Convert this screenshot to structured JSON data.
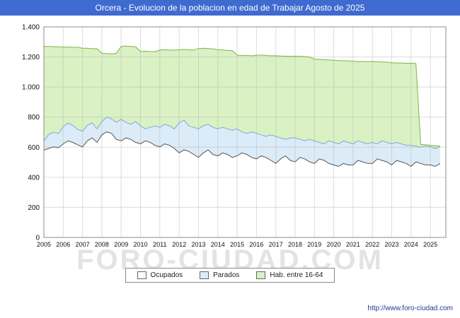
{
  "window": {
    "title": "Orcera - Evolucion de la poblacion en edad de Trabajar Agosto de 2025"
  },
  "watermark": "FORO-CIUDAD.COM",
  "footer": {
    "url": "http://www.foro-ciudad.com"
  },
  "legend": [
    {
      "label": "Ocupados",
      "fill": "#ffffff"
    },
    {
      "label": "Parados",
      "fill": "#dcebf8"
    },
    {
      "label": "Hab. entre 16-64",
      "fill": "#daf1c4"
    }
  ],
  "chart_data": {
    "type": "area",
    "title": "Orcera - Evolucion de la poblacion en edad de Trabajar Agosto de 2025",
    "xlabel": "",
    "ylabel": "",
    "grid": true,
    "legend_position": "bottom",
    "ylim": [
      0,
      1400
    ],
    "yticks": [
      0,
      200,
      400,
      600,
      800,
      1000,
      1200,
      1400
    ],
    "ytick_labels": [
      "0",
      "200",
      "400",
      "600",
      "800",
      "1.000",
      "1.200",
      "1.400"
    ],
    "xticks": [
      2005,
      2006,
      2007,
      2008,
      2009,
      2010,
      2011,
      2012,
      2013,
      2014,
      2015,
      2016,
      2017,
      2018,
      2019,
      2020,
      2021,
      2022,
      2023,
      2024,
      2025
    ],
    "x_start": 2005,
    "x_step": 0.25,
    "x_axis_end": 2025.8,
    "series": [
      {
        "name": "Hab. entre 16-64",
        "fill": "#daf1c4",
        "stroke": "#7fb347",
        "values": [
          1270,
          1270,
          1268,
          1268,
          1266,
          1266,
          1264,
          1264,
          1258,
          1258,
          1255,
          1255,
          1225,
          1222,
          1220,
          1224,
          1270,
          1272,
          1270,
          1268,
          1236,
          1238,
          1236,
          1235,
          1246,
          1248,
          1246,
          1245,
          1248,
          1250,
          1248,
          1246,
          1256,
          1258,
          1256,
          1254,
          1248,
          1246,
          1244,
          1242,
          1212,
          1210,
          1210,
          1208,
          1212,
          1212,
          1210,
          1208,
          1208,
          1206,
          1205,
          1204,
          1205,
          1204,
          1202,
          1200,
          1186,
          1184,
          1182,
          1180,
          1178,
          1176,
          1175,
          1174,
          1172,
          1170,
          1170,
          1168,
          1170,
          1168,
          1166,
          1165,
          1162,
          1160,
          1160,
          1158,
          1158,
          1156,
          618,
          616,
          612,
          610,
          608
        ]
      },
      {
        "name": "Parados",
        "fill": "#dcebf8",
        "stroke": "#7ea9d8",
        "values": [
          640,
          685,
          700,
          690,
          735,
          760,
          745,
          718,
          705,
          745,
          762,
          722,
          770,
          800,
          788,
          765,
          785,
          765,
          752,
          770,
          742,
          722,
          732,
          742,
          732,
          752,
          742,
          722,
          762,
          780,
          742,
          732,
          722,
          742,
          752,
          732,
          722,
          732,
          722,
          712,
          722,
          702,
          692,
          702,
          692,
          682,
          672,
          682,
          672,
          662,
          652,
          662,
          662,
          652,
          642,
          652,
          642,
          632,
          622,
          642,
          632,
          622,
          642,
          632,
          622,
          642,
          632,
          622,
          632,
          622,
          642,
          632,
          622,
          632,
          622,
          612,
          612,
          606,
          600,
          608,
          604,
          590,
          606
        ]
      },
      {
        "name": "Ocupados",
        "fill": "#ffffff",
        "stroke": "#555555",
        "values": [
          580,
          592,
          602,
          596,
          622,
          642,
          632,
          616,
          602,
          642,
          662,
          632,
          682,
          702,
          692,
          652,
          642,
          662,
          652,
          632,
          622,
          642,
          632,
          612,
          602,
          622,
          612,
          592,
          562,
          582,
          572,
          552,
          532,
          562,
          582,
          552,
          542,
          562,
          552,
          532,
          542,
          562,
          552,
          532,
          522,
          542,
          532,
          512,
          492,
          522,
          542,
          512,
          502,
          532,
          522,
          502,
          492,
          522,
          512,
          492,
          482,
          472,
          492,
          482,
          482,
          512,
          502,
          492,
          492,
          522,
          512,
          502,
          482,
          512,
          502,
          492,
          472,
          502,
          492,
          482,
          482,
          472,
          492
        ]
      }
    ]
  }
}
